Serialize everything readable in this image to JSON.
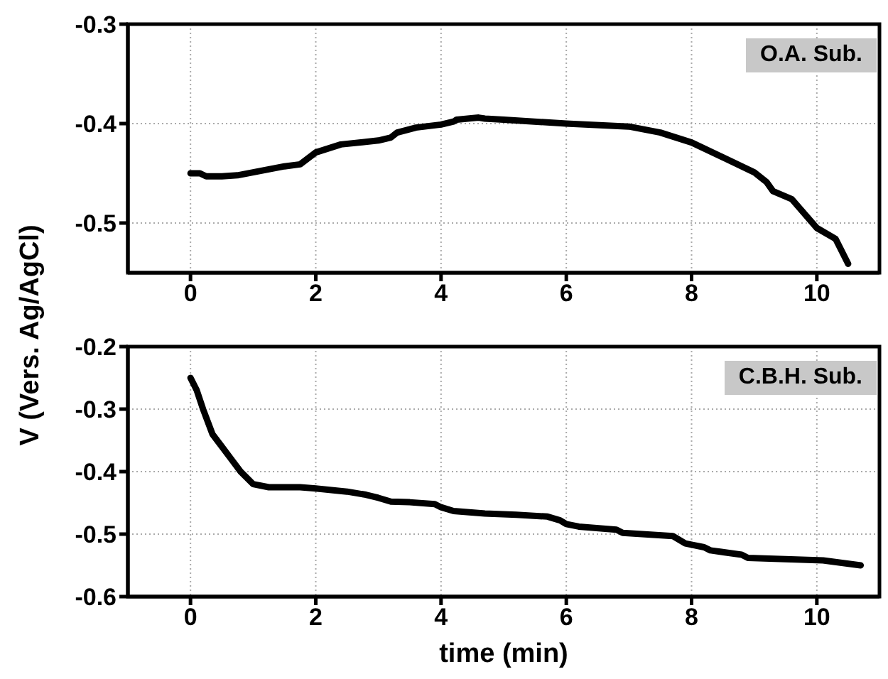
{
  "chart_data": [
    {
      "type": "line",
      "ylabel": "V (Vers. Ag/AgCl)",
      "annotations": [
        "O.A. Sub."
      ],
      "xlim": [
        -1,
        11
      ],
      "xticks": [
        0,
        2,
        4,
        6,
        8,
        10
      ],
      "ylim": [
        -0.55,
        -0.3
      ],
      "yticks": [
        -0.3,
        -0.4,
        -0.5
      ],
      "grid": true,
      "legend": false,
      "marker": "none",
      "line_style": "solid",
      "series": [
        {
          "color": "#000000",
          "x": [
            0,
            0.15,
            0.25,
            0.5,
            0.75,
            1,
            1.5,
            1.75,
            2,
            2.4,
            3,
            3.2,
            3.3,
            3.6,
            4,
            4.2,
            4.25,
            4.6,
            4.7,
            5,
            6,
            7,
            7.5,
            8,
            9,
            9.2,
            9.3,
            9.6,
            10,
            10.3,
            10.5
          ],
          "values": [
            -0.45,
            -0.45,
            -0.453,
            -0.453,
            -0.452,
            -0.449,
            -0.443,
            -0.441,
            -0.429,
            -0.421,
            -0.417,
            -0.414,
            -0.409,
            -0.404,
            -0.401,
            -0.398,
            -0.396,
            -0.394,
            -0.395,
            -0.396,
            -0.4,
            -0.403,
            -0.409,
            -0.419,
            -0.449,
            -0.459,
            -0.468,
            -0.476,
            -0.505,
            -0.516,
            -0.541
          ]
        }
      ]
    },
    {
      "type": "line",
      "xlabel": "time (min)",
      "annotations": [
        "C.B.H. Sub."
      ],
      "xlim": [
        -1,
        11
      ],
      "xticks": [
        0,
        2,
        4,
        6,
        8,
        10
      ],
      "ylim": [
        -0.6,
        -0.2
      ],
      "yticks": [
        -0.2,
        -0.3,
        -0.4,
        -0.5,
        -0.6
      ],
      "grid": true,
      "legend": false,
      "marker": "none",
      "line_style": "solid",
      "series": [
        {
          "color": "#000000",
          "x": [
            0,
            0.1,
            0.2,
            0.35,
            0.5,
            0.65,
            0.8,
            1,
            1.25,
            1.75,
            2,
            2.5,
            2.8,
            3,
            3.2,
            3.5,
            3.9,
            4,
            4.2,
            4.7,
            5.2,
            5.7,
            5.9,
            6,
            6.2,
            6.8,
            6.9,
            7.7,
            7.9,
            8.2,
            8.3,
            8.8,
            8.9,
            10.1,
            10.7
          ],
          "values": [
            -0.25,
            -0.27,
            -0.3,
            -0.34,
            -0.36,
            -0.38,
            -0.4,
            -0.42,
            -0.425,
            -0.425,
            -0.427,
            -0.432,
            -0.437,
            -0.442,
            -0.448,
            -0.449,
            -0.452,
            -0.457,
            -0.463,
            -0.467,
            -0.469,
            -0.472,
            -0.478,
            -0.484,
            -0.488,
            -0.493,
            -0.498,
            -0.503,
            -0.515,
            -0.521,
            -0.526,
            -0.533,
            -0.538,
            -0.542,
            -0.55
          ]
        }
      ]
    }
  ]
}
